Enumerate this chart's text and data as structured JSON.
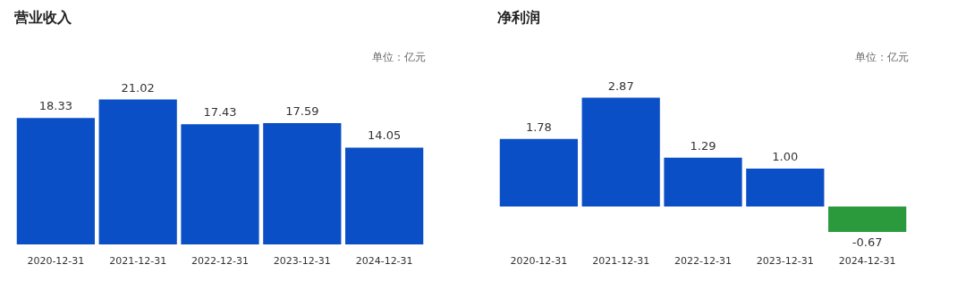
{
  "chart_data": [
    {
      "type": "bar",
      "title": "营业收入",
      "annotations": [
        "单位：亿元"
      ],
      "categories": [
        "2020-12-31",
        "2021-12-31",
        "2022-12-31",
        "2023-12-31",
        "2024-12-31"
      ],
      "values": [
        18.33,
        21.02,
        17.43,
        17.59,
        14.05
      ],
      "colors": [
        "#0b4fc6",
        "#0b4fc6",
        "#0b4fc6",
        "#0b4fc6",
        "#0b4fc6"
      ],
      "value_labels": [
        "18.33",
        "21.02",
        "17.43",
        "17.59",
        "14.05"
      ],
      "tick_labels": "x"
    },
    {
      "type": "bar",
      "title": "净利润",
      "annotations": [
        "单位：亿元"
      ],
      "categories": [
        "2020-12-31",
        "2021-12-31",
        "2022-12-31",
        "2023-12-31",
        "2024-12-31"
      ],
      "values": [
        1.78,
        2.87,
        1.29,
        1.0,
        -0.67
      ],
      "colors": [
        "#0b4fc6",
        "#0b4fc6",
        "#0b4fc6",
        "#0b4fc6",
        "#2a9a3c"
      ],
      "value_labels": [
        "1.78",
        "2.87",
        "1.29",
        "1.00",
        "-0.67"
      ],
      "tick_labels": "x"
    }
  ]
}
